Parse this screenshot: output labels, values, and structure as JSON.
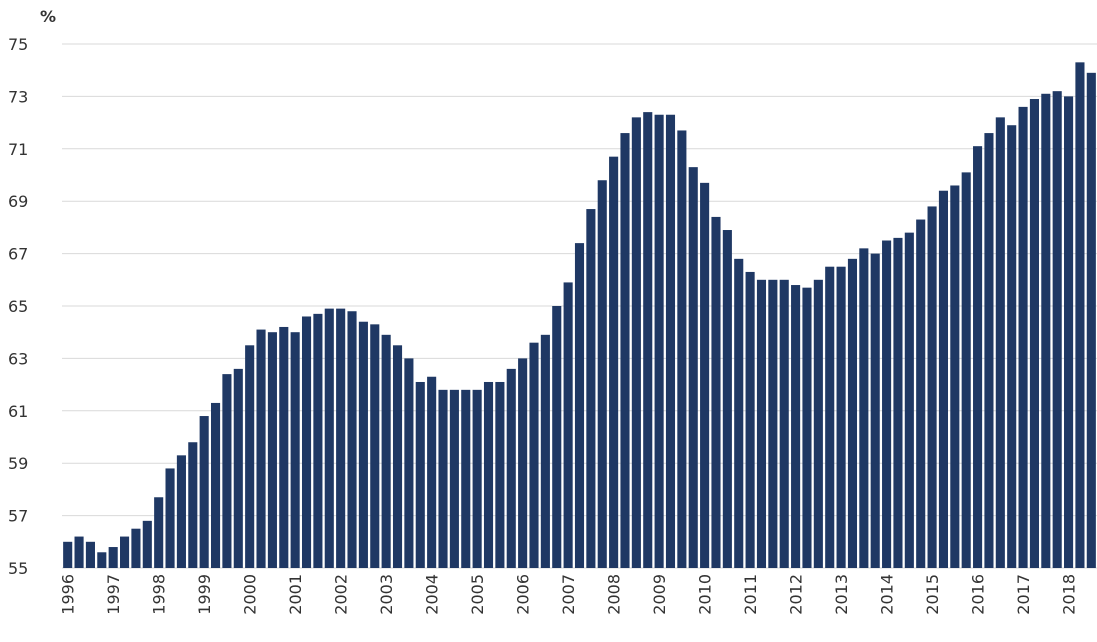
{
  "chart_data": {
    "type": "bar",
    "y_label": "%",
    "categories": [
      "1996",
      null,
      null,
      null,
      "1997",
      null,
      null,
      null,
      "1998",
      null,
      null,
      null,
      "1999",
      null,
      null,
      null,
      "2000",
      null,
      null,
      null,
      "2001",
      null,
      null,
      null,
      "2002",
      null,
      null,
      null,
      "2003",
      null,
      null,
      null,
      "2004",
      null,
      null,
      null,
      "2005",
      null,
      null,
      null,
      "2006",
      null,
      null,
      null,
      "2007",
      null,
      null,
      null,
      "2008",
      null,
      null,
      null,
      "2009",
      null,
      null,
      null,
      "2010",
      null,
      null,
      null,
      "2011",
      null,
      null,
      null,
      "2012",
      null,
      null,
      null,
      "2013",
      null,
      null,
      null,
      "2014",
      null,
      null,
      null,
      "2015",
      null,
      null,
      null,
      "2016",
      null,
      null,
      null,
      "2017",
      null,
      null,
      null,
      "2018",
      null,
      null
    ],
    "values": [
      56.0,
      56.2,
      56.0,
      55.6,
      55.8,
      56.2,
      56.5,
      56.8,
      57.7,
      58.8,
      59.3,
      59.8,
      60.8,
      61.3,
      62.4,
      62.6,
      63.5,
      64.1,
      64.0,
      64.2,
      64.0,
      64.6,
      64.7,
      64.9,
      64.9,
      64.8,
      64.4,
      64.3,
      63.9,
      63.5,
      63.0,
      62.1,
      62.3,
      61.8,
      61.8,
      61.8,
      61.8,
      62.1,
      62.1,
      62.6,
      63.0,
      63.6,
      63.9,
      65.0,
      65.9,
      67.4,
      68.7,
      69.8,
      70.7,
      71.6,
      72.2,
      72.4,
      72.3,
      72.3,
      71.7,
      70.3,
      69.7,
      68.4,
      67.9,
      66.8,
      66.3,
      66.0,
      66.0,
      66.0,
      65.8,
      65.7,
      66.0,
      66.5,
      66.5,
      66.8,
      67.2,
      67.0,
      67.5,
      67.6,
      67.8,
      68.3,
      68.8,
      69.4,
      69.6,
      70.1,
      71.1,
      71.6,
      72.2,
      71.9,
      72.6,
      72.9,
      73.1,
      73.2,
      73.0,
      74.3,
      73.9
    ],
    "color": "#1f3864",
    "ylim": [
      55,
      75
    ],
    "yticks": [
      55,
      57,
      59,
      61,
      63,
      65,
      67,
      69,
      71,
      73,
      75
    ],
    "grid": true
  }
}
